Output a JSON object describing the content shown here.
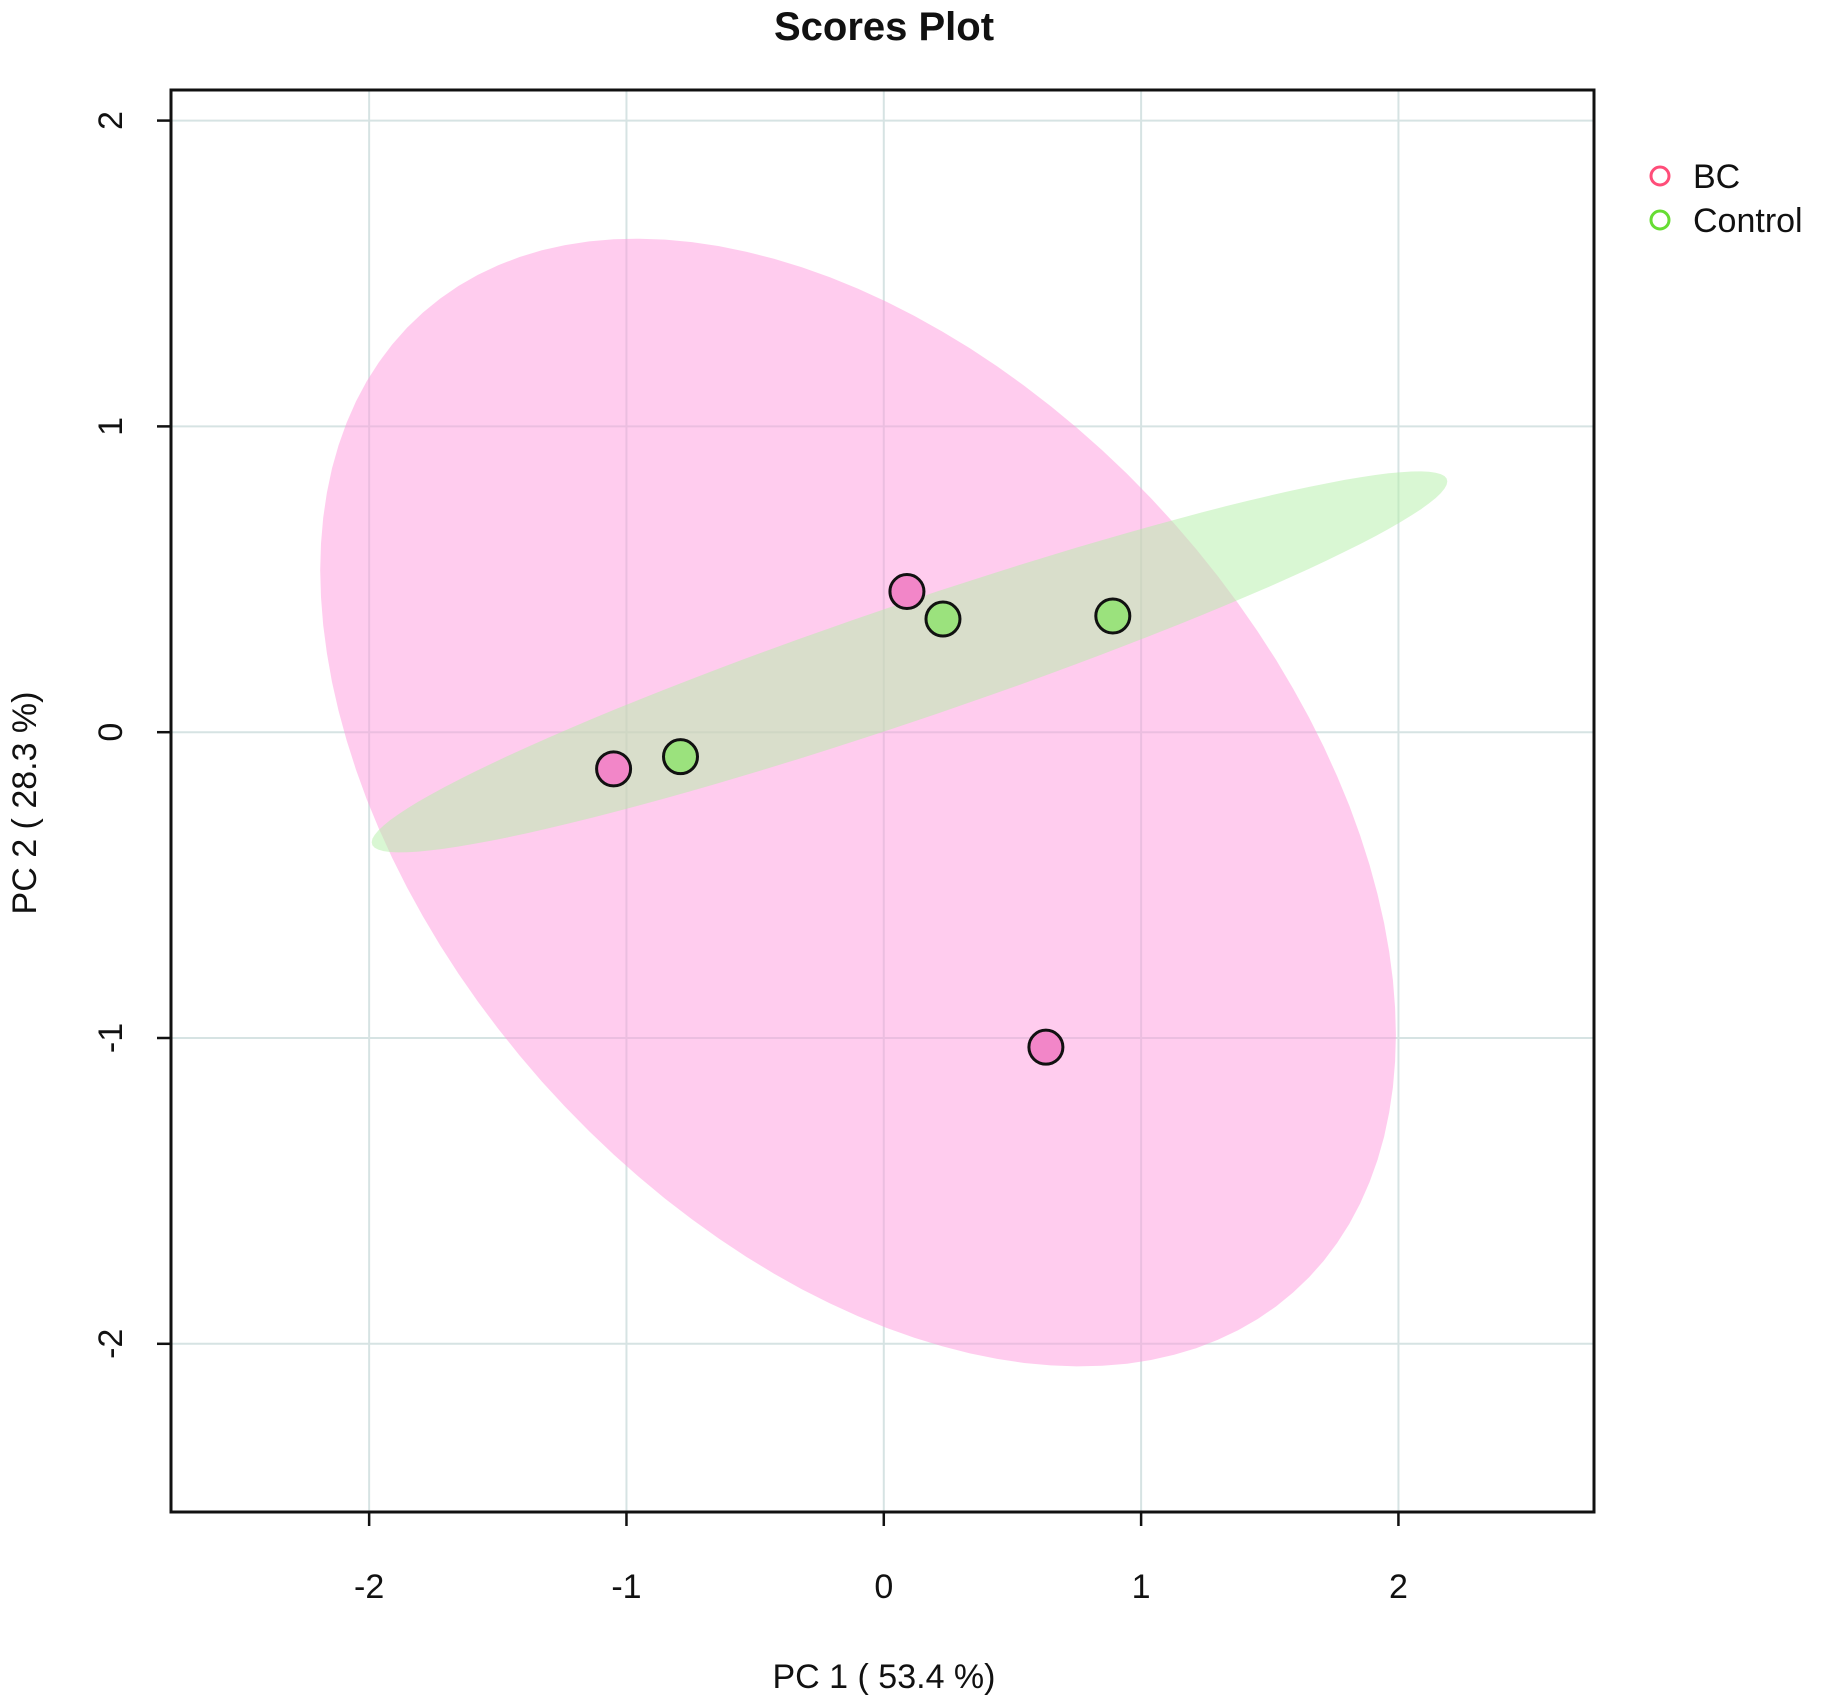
{
  "chart_data": {
    "type": "scatter",
    "title": "Scores Plot",
    "xlabel": "PC 1 ( 53.4 %)",
    "ylabel": "PC 2 ( 28.3 %)",
    "xlim": [
      -2.77,
      2.76
    ],
    "ylim": [
      -2.55,
      2.1
    ],
    "xticks": [
      -2,
      -1,
      0,
      1,
      2
    ],
    "yticks": [
      -2,
      -1,
      0,
      1,
      2
    ],
    "xtick_labels": [
      "-2",
      "-1",
      "0",
      "1",
      "2"
    ],
    "ytick_labels": [
      "-2",
      "-1",
      "0",
      "1",
      "2"
    ],
    "grid": true,
    "legend_position": "right-top",
    "series": [
      {
        "name": "BC",
        "legend_color": "#ff4d79",
        "point_fill": "#f286c8",
        "ellipse_fill": "#ff99dd",
        "points": [
          [
            0.09,
            0.46
          ],
          [
            -1.05,
            -0.12
          ],
          [
            0.63,
            -1.03
          ]
        ],
        "ellipse": {
          "center": [
            -0.1,
            -0.23
          ],
          "u": [
            2.09,
            -0.76
          ],
          "v": [
            0.0,
            1.68
          ]
        }
      },
      {
        "name": "Control",
        "legend_color": "#66dd33",
        "point_fill": "#9be27d",
        "ellipse_fill": "#b4f0a8",
        "points": [
          [
            0.23,
            0.37
          ],
          [
            -0.79,
            -0.08
          ],
          [
            0.89,
            0.38
          ]
        ],
        "ellipse": {
          "center": [
            0.1,
            0.23
          ],
          "u": [
            2.09,
            0.59
          ],
          "v": [
            0.0,
            0.2
          ]
        }
      }
    ]
  }
}
